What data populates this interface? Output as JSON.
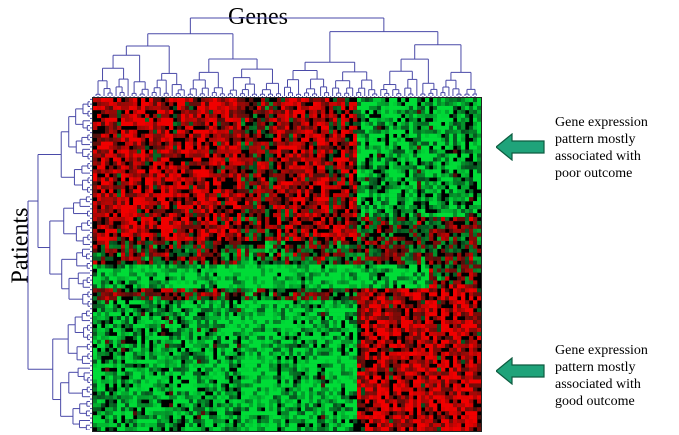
{
  "labels": {
    "genes": "Genes",
    "patients": "Patients"
  },
  "annotations": [
    {
      "text_lines": [
        "Gene expression",
        "pattern mostly",
        "associated with",
        "poor outcome"
      ]
    },
    {
      "text_lines": [
        "Gene expression",
        "pattern mostly",
        "associated with",
        "good outcome"
      ]
    }
  ],
  "colors": {
    "dendrogram": "#4a4aa8",
    "arrow_fill": "#1fa37a",
    "arrow_stroke": "#0d5c40",
    "high": "#e0201a",
    "low": "#22c43a",
    "mid": "#000000"
  }
}
